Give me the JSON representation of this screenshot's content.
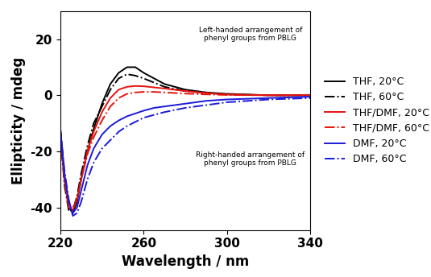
{
  "chart_data": {
    "type": "line",
    "x_label": "Wavelength / nm",
    "y_label": "Ellipticity / mdeg",
    "x": [
      220,
      222,
      224,
      226,
      228,
      230,
      233,
      236,
      240,
      244,
      248,
      252,
      256,
      260,
      265,
      270,
      280,
      290,
      300,
      320,
      340
    ],
    "series": [
      {
        "name": "THF, 20°C",
        "color": "#000000",
        "line_style": "solid",
        "values": [
          -12,
          -30,
          -40,
          -42,
          -38,
          -30,
          -20,
          -12,
          -3,
          4,
          8,
          10,
          10,
          8,
          6,
          4,
          2,
          1,
          0.5,
          0,
          0
        ]
      },
      {
        "name": "THF, 60°C",
        "color": "#000000",
        "line_style": "dashdot",
        "values": [
          -14,
          -32,
          -41,
          -41,
          -36,
          -28,
          -18,
          -10,
          -4,
          2,
          6,
          7.5,
          7,
          6,
          4.5,
          3,
          1.5,
          0.8,
          0.3,
          0,
          0
        ]
      },
      {
        "name": "THF/DMF, 20°C",
        "color": "#e8120c",
        "line_style": "solid",
        "values": [
          -12,
          -30,
          -40,
          -41,
          -37,
          -30,
          -20,
          -13,
          -6,
          -1,
          2,
          3,
          3.3,
          3.2,
          2.8,
          2.4,
          1.5,
          0.8,
          0.3,
          0,
          0
        ]
      },
      {
        "name": "THF/DMF, 60°C",
        "color": "#e8120c",
        "line_style": "dashdot",
        "values": [
          -13,
          -30,
          -39,
          -40,
          -37,
          -30,
          -21,
          -15,
          -9,
          -4,
          -1,
          0.5,
          1,
          1.2,
          1.2,
          1,
          0.6,
          0.3,
          0.1,
          0,
          0
        ]
      },
      {
        "name": "DMF, 20°C",
        "color": "#1a1adb",
        "line_style": "solid",
        "values": [
          -12,
          -28,
          -38,
          -42,
          -40,
          -34,
          -25,
          -19,
          -14,
          -11,
          -9,
          -7.5,
          -6.5,
          -5.5,
          -4.5,
          -4,
          -3,
          -2,
          -1.5,
          -1,
          -0.5
        ]
      },
      {
        "name": "DMF, 60°C",
        "color": "#1a1adb",
        "line_style": "dashdot",
        "values": [
          -12,
          -27,
          -37,
          -43,
          -42,
          -38,
          -30,
          -24,
          -19,
          -16,
          -13,
          -11,
          -9.5,
          -8,
          -7,
          -6,
          -4.5,
          -3.5,
          -2.5,
          -1.5,
          -1
        ]
      }
    ],
    "annotations": [
      "Left-handed arrangement of\nphenyl groups from PBLG",
      "Right-handed arrangement of\nphenyl groups from PBLG"
    ],
    "xlim": [
      220,
      340
    ],
    "xticks": [
      220,
      260,
      300,
      340
    ],
    "ylim": [
      -48,
      30
    ],
    "yticks": [
      -40,
      -20,
      0,
      20
    ],
    "legend": "right",
    "grid": false
  }
}
